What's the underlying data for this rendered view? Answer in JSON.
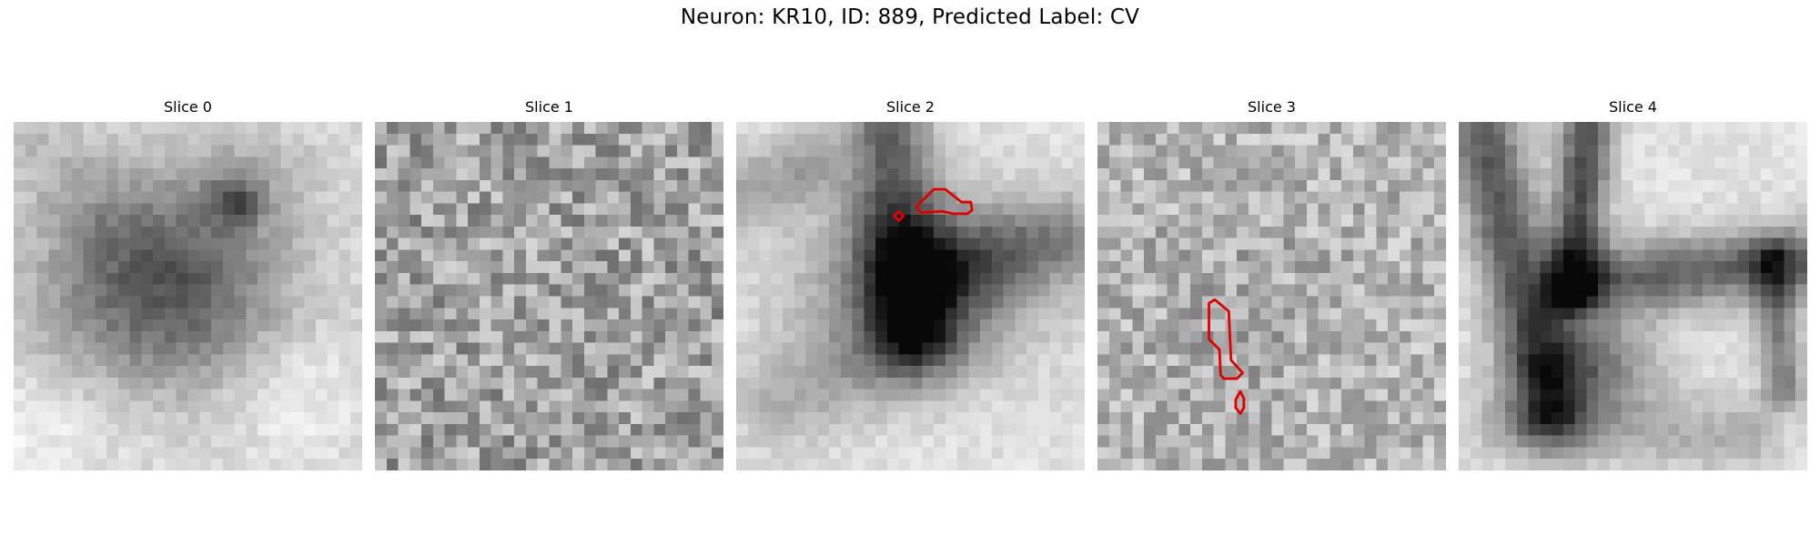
{
  "figure": {
    "title": "Neuron: KR10, ID: 889, Predicted Label: CV"
  },
  "panels": [
    {
      "title": "Slice 0",
      "has_contour": false
    },
    {
      "title": "Slice 1",
      "has_contour": false
    },
    {
      "title": "Slice 2",
      "has_contour": true
    },
    {
      "title": "Slice 3",
      "has_contour": true
    },
    {
      "title": "Slice 4",
      "has_contour": false
    }
  ],
  "colors": {
    "background": "#ffffff",
    "contour": "#e00000",
    "colormap": "grayscale (dark = high intensity)"
  }
}
